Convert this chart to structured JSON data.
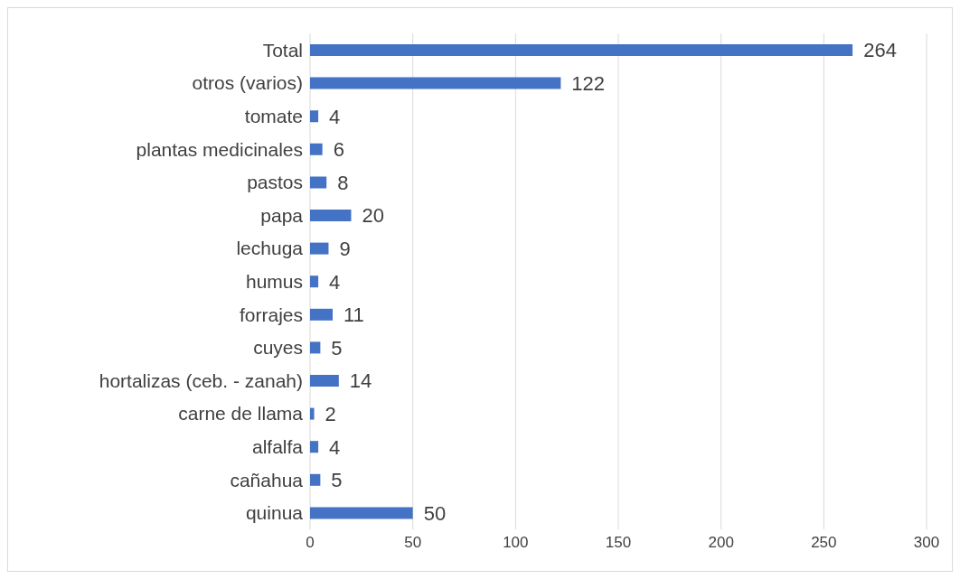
{
  "chart_data": {
    "type": "bar",
    "orientation": "horizontal",
    "categories": [
      "Total",
      "otros (varios)",
      "tomate",
      "plantas medicinales",
      "pastos",
      "papa",
      "lechuga",
      "humus",
      "forrajes",
      "cuyes",
      "hortalizas (ceb. - zanah)",
      "carne de llama",
      "alfalfa",
      "cañahua",
      "quinua"
    ],
    "values": [
      264,
      122,
      4,
      6,
      8,
      20,
      9,
      4,
      11,
      5,
      14,
      2,
      4,
      5,
      50
    ],
    "color": "#4472c4",
    "xlim": [
      0,
      300
    ],
    "xticks": [
      0,
      50,
      100,
      150,
      200,
      250,
      300
    ],
    "grid": "x",
    "data_labels": true
  }
}
